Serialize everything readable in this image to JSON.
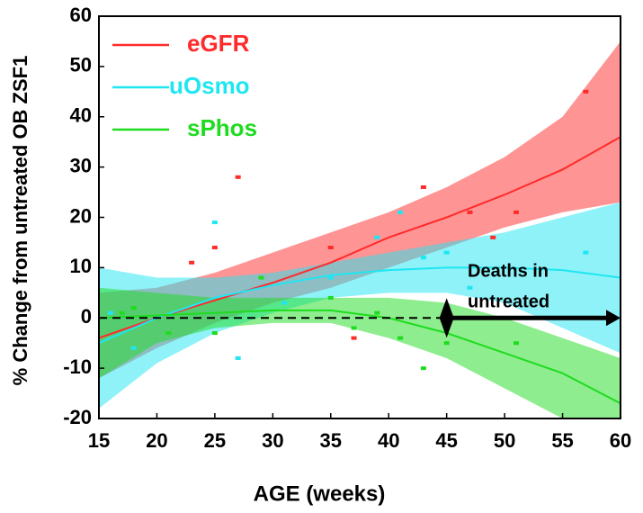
{
  "chart_data": {
    "type": "line",
    "xlabel": "AGE (weeks)",
    "ylabel": "% Change from untreated OB ZSF1",
    "x": [
      15,
      20,
      25,
      30,
      35,
      40,
      45,
      50,
      55,
      60
    ],
    "xlim": [
      15,
      60
    ],
    "xticks": [
      15,
      20,
      25,
      30,
      35,
      40,
      45,
      50,
      55,
      60
    ],
    "ylim": [
      -20,
      60
    ],
    "yticks": [
      -20,
      -10,
      0,
      10,
      20,
      30,
      40,
      50,
      60
    ],
    "grid": false,
    "legend": "upper left",
    "reference_line": 0,
    "series": [
      {
        "name": "eGFR",
        "color": "#ff2a2a",
        "values": [
          -4,
          0,
          3.5,
          7,
          11,
          16,
          20,
          24.5,
          29.5,
          36
        ],
        "lower": [
          -12,
          -6,
          -1,
          3,
          6,
          10,
          14,
          18,
          21,
          23
        ],
        "upper": [
          5,
          6,
          9,
          13,
          17,
          21,
          26,
          32,
          40,
          55
        ],
        "points": {
          "x": [
            23,
            25,
            27,
            35,
            37,
            43,
            47,
            49,
            51,
            57
          ],
          "y": [
            11,
            14,
            28,
            14,
            -4,
            26,
            21,
            16,
            21,
            45
          ]
        }
      },
      {
        "name": "uOsmo",
        "color": "#1ee6f2",
        "values": [
          -5,
          0,
          4,
          6.5,
          8.5,
          9.5,
          10,
          10,
          9.5,
          8
        ],
        "lower": [
          -18,
          -9,
          -3,
          1,
          4,
          5,
          5,
          3,
          -2,
          -7
        ],
        "upper": [
          10,
          8,
          8,
          9,
          11,
          13,
          15,
          17,
          20,
          23
        ],
        "points": {
          "x": [
            16,
            18,
            25,
            27,
            31,
            35,
            39,
            41,
            43,
            45,
            47,
            57
          ],
          "y": [
            1,
            -6,
            19,
            -8,
            3,
            8,
            16,
            21,
            12,
            13,
            6,
            13
          ]
        }
      },
      {
        "name": "sPhos",
        "color": "#1edc1e",
        "values": [
          0,
          0.5,
          1,
          1.5,
          1.5,
          0,
          -3,
          -7,
          -11,
          -17
        ],
        "lower": [
          -12,
          -5,
          -2,
          -1,
          -1,
          -4,
          -8,
          -14,
          -20,
          -25
        ],
        "upper": [
          6,
          5,
          4,
          4,
          4,
          4,
          3,
          0,
          -4,
          -8
        ],
        "points": {
          "x": [
            17,
            18,
            21,
            25,
            29,
            35,
            37,
            39,
            41,
            43,
            45,
            51
          ],
          "y": [
            1,
            2,
            -3,
            -3,
            8,
            4,
            -2,
            1,
            -4,
            -10,
            -5,
            -5
          ]
        }
      }
    ],
    "annotation": {
      "lines": [
        "Deaths in",
        "untreated"
      ],
      "arrow_x": [
        45,
        60
      ],
      "arrow_y": 0
    }
  }
}
